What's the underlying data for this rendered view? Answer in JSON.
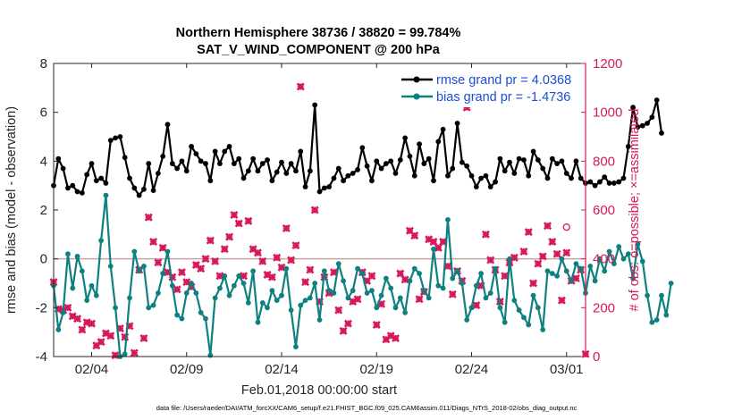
{
  "chart_data": {
    "type": "line",
    "title": "Northern Hemisphere 38736 / 38820 = 99.784%",
    "subtitle": "SAT_V_WIND_COMPONENT @ 200 hPa",
    "xlabel": "Feb.01,2018 00:00:00 start",
    "ylabel_left": "rmse and bias (model - observation)",
    "ylabel_right": "# of obs: o=possible; ×=assimilated",
    "footnote": "data file: /Users/raeder/DAI/ATM_forcXX/CAM6_setup/f.e21.FHIST_BGC.f09_025.CAM6assim.011/Diags_NTrS_2018-02/obs_diag_output.nc",
    "xlim": [
      1,
      29
    ],
    "ylim_left": [
      -4,
      8
    ],
    "ylim_right": [
      0,
      1200
    ],
    "x_ticks": [
      3,
      8,
      13,
      18,
      23,
      28
    ],
    "x_tick_labels": [
      "02/04",
      "02/09",
      "02/14",
      "02/19",
      "02/24",
      "03/01"
    ],
    "y_left_ticks": [
      -4,
      -2,
      0,
      2,
      4,
      6,
      8
    ],
    "y_left_tick_labels": [
      "-4",
      "-2",
      "0",
      "2",
      "4",
      "6",
      "8"
    ],
    "y_right_ticks": [
      0,
      200,
      400,
      600,
      800,
      1000,
      1200
    ],
    "y_right_tick_labels": [
      "0",
      "200",
      "400",
      "600",
      "800",
      "1000",
      "1200"
    ],
    "colors": {
      "rmse": "#000000",
      "bias": "#0e8080",
      "obs": "#d6195a",
      "zero_line": "#c8a5a5"
    },
    "legend": {
      "position": "top-right",
      "entries": [
        "rmse grand pr = 4.0368",
        "bias grand pr = -1.4736"
      ],
      "text_color": "#1a4fd6"
    },
    "series": [
      {
        "name": "rmse",
        "axis": "left",
        "x_start": 1,
        "x_step": 0.25,
        "values": [
          3.0,
          4.1,
          3.7,
          2.9,
          3.0,
          2.75,
          2.7,
          3.45,
          3.9,
          3.2,
          3.3,
          3.1,
          4.85,
          4.95,
          5.0,
          4.15,
          3.3,
          2.9,
          2.6,
          2.85,
          3.9,
          2.8,
          3.5,
          4.2,
          5.5,
          3.9,
          3.7,
          4.0,
          3.6,
          4.6,
          4.3,
          4.0,
          3.9,
          3.2,
          4.4,
          3.9,
          4.4,
          4.6,
          3.9,
          4.1,
          3.3,
          3.6,
          4.1,
          3.6,
          3.9,
          4.05,
          3.2,
          3.55,
          3.95,
          3.5,
          3.9,
          3.6,
          4.4,
          2.95,
          3.6,
          6.3,
          2.75,
          2.9,
          2.95,
          3.3,
          3.7,
          3.2,
          3.4,
          3.5,
          3.65,
          4.55,
          3.8,
          3.2,
          4.0,
          3.7,
          3.9,
          4.0,
          3.5,
          4.05,
          4.95,
          4.2,
          3.4,
          4.7,
          3.9,
          4.1,
          3.2,
          4.8,
          5.3,
          3.4,
          3.7,
          5.55,
          3.95,
          3.8,
          3.4,
          2.95,
          3.3,
          3.4,
          2.95,
          3.15,
          4.1,
          3.6,
          3.95,
          3.5,
          4.1,
          4.05,
          3.4,
          4.4,
          4.05,
          3.7,
          3.3,
          4.1,
          3.9,
          4.0,
          3.5,
          3.3,
          4.0,
          3.3,
          3.1,
          3.15,
          3.0,
          3.15,
          3.35,
          3.1,
          3.1,
          3.15,
          3.3,
          4.6,
          6.2,
          5.4,
          5.45,
          5.55,
          5.8,
          6.5,
          5.15
        ]
      },
      {
        "name": "bias",
        "axis": "left",
        "x_start": 1,
        "x_step": 0.25,
        "values": [
          -1.1,
          -2.9,
          -2.2,
          0.2,
          -1.2,
          0.1,
          -0.5,
          -1.7,
          -1.1,
          -1.5,
          0.75,
          2.6,
          -0.3,
          -2.0,
          -4.0,
          -3.9,
          -1.6,
          0.3,
          -0.5,
          -0.3,
          -2.0,
          -1.9,
          -1.4,
          -0.6,
          0.3,
          -1.1,
          -2.3,
          -2.45,
          -1.4,
          -1.0,
          -1.4,
          -2.2,
          -2.45,
          -3.95,
          -1.6,
          -1.2,
          -0.7,
          -1.5,
          -1.1,
          -0.7,
          -1.0,
          -1.8,
          -0.5,
          -2.6,
          -1.8,
          -2.0,
          -1.3,
          -1.7,
          -1.5,
          -0.4,
          -2.1,
          -3.6,
          -1.9,
          -1.7,
          -1.6,
          -1.0,
          -2.5,
          -0.5,
          -1.3,
          -1.4,
          -0.2,
          -0.9,
          -1.6,
          -1.3,
          -0.4,
          -0.6,
          -1.4,
          -1.3,
          -2.0,
          -1.5,
          -0.8,
          -1.2,
          -2.0,
          -1.6,
          -2.2,
          -0.9,
          -0.4,
          -0.6,
          -1.3,
          -1.6,
          0.4,
          -1.1,
          -1.2,
          1.6,
          -0.8,
          -0.5,
          -1.0,
          -2.5,
          -2.0,
          -1.1,
          -0.6,
          -1.6,
          -1.4,
          -0.4,
          -2.0,
          -2.6,
          0.0,
          -1.7,
          -2.1,
          -2.4,
          -2.7,
          -1.5,
          -2.0,
          -2.9,
          -0.5,
          -0.6,
          -0.7,
          0.0,
          -0.5,
          -0.9,
          -0.2,
          -0.4,
          -1.4,
          -0.3,
          -0.9,
          0.0,
          -0.5,
          0.3,
          -0.2,
          0.5,
          0.0,
          0.2,
          -0.8,
          0.6,
          -0.1,
          -1.5,
          -2.6,
          -2.5,
          -1.5,
          -2.3,
          -1.0
        ]
      }
    ],
    "obs_assimilated": {
      "axis": "right",
      "marker": "×",
      "points": [
        [
          1.0,
          305
        ],
        [
          1.25,
          195
        ],
        [
          1.5,
          190
        ],
        [
          1.75,
          200
        ],
        [
          2.0,
          165
        ],
        [
          2.25,
          155
        ],
        [
          2.5,
          110
        ],
        [
          2.75,
          140
        ],
        [
          3.0,
          135
        ],
        [
          3.25,
          45
        ],
        [
          3.5,
          60
        ],
        [
          3.75,
          95
        ],
        [
          4.0,
          85
        ],
        [
          4.25,
          5
        ],
        [
          4.5,
          115
        ],
        [
          4.75,
          80
        ],
        [
          5.0,
          125
        ],
        [
          5.25,
          15
        ],
        [
          5.5,
          355
        ],
        [
          5.75,
          75
        ],
        [
          6.0,
          570
        ],
        [
          6.25,
          470
        ],
        [
          6.5,
          385
        ],
        [
          6.75,
          445
        ],
        [
          7.0,
          345
        ],
        [
          7.25,
          325
        ],
        [
          7.5,
          275
        ],
        [
          7.75,
          345
        ],
        [
          8.0,
          305
        ],
        [
          8.25,
          285
        ],
        [
          8.5,
          375
        ],
        [
          8.75,
          360
        ],
        [
          9.0,
          400
        ],
        [
          9.25,
          475
        ],
        [
          9.5,
          390
        ],
        [
          9.75,
          330
        ],
        [
          10.0,
          440
        ],
        [
          10.25,
          490
        ],
        [
          10.5,
          580
        ],
        [
          10.75,
          545
        ],
        [
          11.0,
          330
        ],
        [
          11.25,
          555
        ],
        [
          11.5,
          440
        ],
        [
          11.75,
          425
        ],
        [
          12.0,
          390
        ],
        [
          12.25,
          335
        ],
        [
          12.5,
          325
        ],
        [
          12.75,
          405
        ],
        [
          13.0,
          365
        ],
        [
          13.25,
          525
        ],
        [
          13.5,
          395
        ],
        [
          13.75,
          455
        ],
        [
          14.0,
          1105
        ],
        [
          14.25,
          305
        ],
        [
          14.5,
          355
        ],
        [
          14.75,
          600
        ],
        [
          15.0,
          225
        ],
        [
          15.25,
          325
        ],
        [
          15.5,
          260
        ],
        [
          15.75,
          345
        ],
        [
          16.0,
          190
        ],
        [
          16.25,
          105
        ],
        [
          16.5,
          135
        ],
        [
          16.75,
          225
        ],
        [
          17.0,
          235
        ],
        [
          17.25,
          345
        ],
        [
          17.5,
          310
        ],
        [
          17.75,
          330
        ],
        [
          18.0,
          130
        ],
        [
          18.25,
          215
        ],
        [
          18.5,
          70
        ],
        [
          18.75,
          85
        ],
        [
          19.0,
          75
        ],
        [
          19.25,
          340
        ],
        [
          19.5,
          315
        ],
        [
          19.75,
          515
        ],
        [
          20.0,
          495
        ],
        [
          20.25,
          235
        ],
        [
          20.5,
          265
        ],
        [
          20.75,
          480
        ],
        [
          21.0,
          470
        ],
        [
          21.25,
          445
        ],
        [
          21.5,
          470
        ],
        [
          21.75,
          370
        ],
        [
          22.0,
          255
        ],
        [
          22.25,
          350
        ],
        [
          22.5,
          310
        ],
        [
          22.75,
          1020
        ],
        [
          23.0,
          1095
        ],
        [
          23.25,
          210
        ],
        [
          23.5,
          290
        ],
        [
          23.75,
          500
        ],
        [
          24.0,
          395
        ],
        [
          24.25,
          355
        ],
        [
          24.5,
          225
        ],
        [
          24.75,
          330
        ],
        [
          25.0,
          385
        ],
        [
          25.25,
          405
        ],
        [
          25.5,
          1100
        ],
        [
          25.75,
          430
        ],
        [
          26.0,
          510
        ],
        [
          26.25,
          300
        ],
        [
          26.5,
          380
        ],
        [
          26.75,
          410
        ],
        [
          27.0,
          535
        ],
        [
          27.25,
          470
        ],
        [
          27.5,
          420
        ],
        [
          27.75,
          230
        ],
        [
          28.0,
          425
        ],
        [
          28.25,
          310
        ],
        [
          28.5,
          320
        ],
        [
          28.75,
          355
        ],
        [
          29.0,
          10
        ]
      ]
    },
    "obs_possible": {
      "axis": "right",
      "marker": "o",
      "points": [
        [
          28.0,
          530
        ]
      ]
    }
  }
}
